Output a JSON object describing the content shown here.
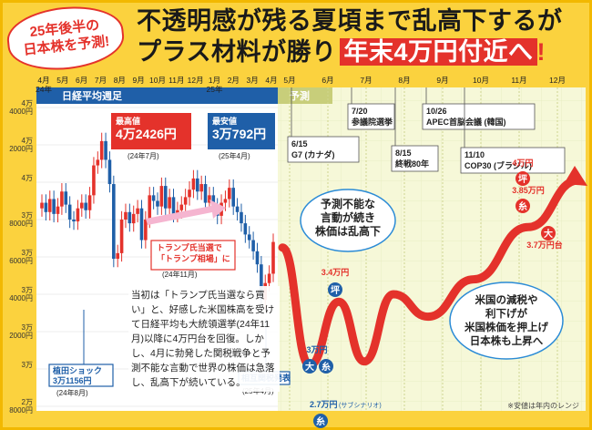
{
  "badge": {
    "line1": "25年後半の",
    "line2": "日本株を予測!"
  },
  "headline": {
    "line1": "不透明感が残る夏頃まで乱高下するが",
    "line2_a": "プラス材料が勝り",
    "line2_b": "年末4万円付近へ",
    "line2_c": "!"
  },
  "chart_data": {
    "type": "line",
    "title": "日経平均週足",
    "forecast_label": "予測",
    "x_ticks_history": [
      "4月\n24年",
      "5月",
      "6月",
      "7月",
      "8月",
      "9月",
      "10月",
      "11月",
      "12月",
      "1月\n25年",
      "2月",
      "3月",
      "4月"
    ],
    "x_ticks_forecast": [
      "5月",
      "6月",
      "7月",
      "8月",
      "9月",
      "10月",
      "11月",
      "12月"
    ],
    "y_ticks": [
      "4万\n4000円",
      "4万\n2000円",
      "4万",
      "3万\n8000円",
      "3万\n6000円",
      "3万\n4000円",
      "3万\n2000円",
      "3万",
      "2万\n8000円"
    ],
    "ylim": [
      28000,
      44000
    ],
    "history_close_weekly": [
      38900,
      38400,
      39100,
      38300,
      38700,
      39500,
      38800,
      38000,
      37900,
      38600,
      38900,
      38500,
      39300,
      40900,
      41200,
      42200,
      41200,
      39900,
      35900,
      36200,
      38000,
      38400,
      37800,
      38300,
      38600,
      36900,
      38000,
      39300,
      39000,
      38700,
      39800,
      38600,
      39200,
      38300,
      38500,
      38800,
      39200,
      39600,
      40200,
      39500,
      39900,
      38900,
      39300,
      38700,
      38200,
      38900,
      39100,
      39700,
      38700,
      38400,
      37800,
      37200,
      36900,
      36300,
      35600,
      33700,
      34600,
      35100,
      36800
    ],
    "forecast_x": [
      "5月",
      "6月",
      "7月",
      "8月",
      "9月",
      "10月",
      "11月",
      "12月"
    ],
    "forecast_curve": [
      36500,
      30200,
      33600,
      30400,
      34000,
      32800,
      34800,
      37600,
      40100
    ],
    "annotations": {
      "high": {
        "label": "最高値",
        "value": "4万2426円",
        "date": "(24年7月)"
      },
      "low": {
        "label": "最安値",
        "value": "3万792円",
        "date": "(25年4月)"
      },
      "shock": {
        "label": "植田ショック",
        "value": "3万1156円",
        "date": "(24年8月)"
      },
      "trump": {
        "line1": "トランプ氏当選で",
        "line2": "「トランプ相場」に",
        "date": "(24年11月)"
      },
      "tariff": {
        "label": "相互関税発表",
        "date": "(25年4月)"
      }
    },
    "events": [
      {
        "date": "6/15",
        "name": "G7 (カナダ)"
      },
      {
        "date": "7/20",
        "name": "参議院選挙"
      },
      {
        "date": "8/15",
        "name": "終戦80年"
      },
      {
        "date": "10/26",
        "name": "APEC首脳会議 (韓国)"
      },
      {
        "date": "11/10",
        "name": "COP30 (ブラジル)"
      }
    ],
    "forecast_points": [
      {
        "value": "3.4万円",
        "tag": "坪"
      },
      {
        "value": "3万円",
        "tag": "大",
        "tag2": "糸"
      },
      {
        "value": "2.7万円",
        "sub": "(サブシナリオ)",
        "tag": "糸"
      },
      {
        "value": "4万円",
        "tag": "坪"
      },
      {
        "value": "3.85万円",
        "tag": "糸"
      },
      {
        "value": "3.7万円台",
        "tag": "大"
      }
    ],
    "bubbles": {
      "uncertain": {
        "line1": "予測不能な",
        "line2": "言動が続き",
        "line3": "株価は乱高下"
      },
      "rate": {
        "line1": "米国の減税や",
        "line2": "利下げが",
        "line3": "米国株価を押上げ",
        "line4": "日本株も上昇へ"
      }
    },
    "footnote": "※安値は年内のレンジ"
  },
  "note": {
    "text": "当初は「トランプ氏当選なら買い」と、好感した米国株高を受けて日経平均も大統領選挙(24年11月)以降に4万円台を回復。しかし、4月に勃発した関税戦争と予測不能な言動で世界の株価は急落し、乱高下が続いている。"
  }
}
